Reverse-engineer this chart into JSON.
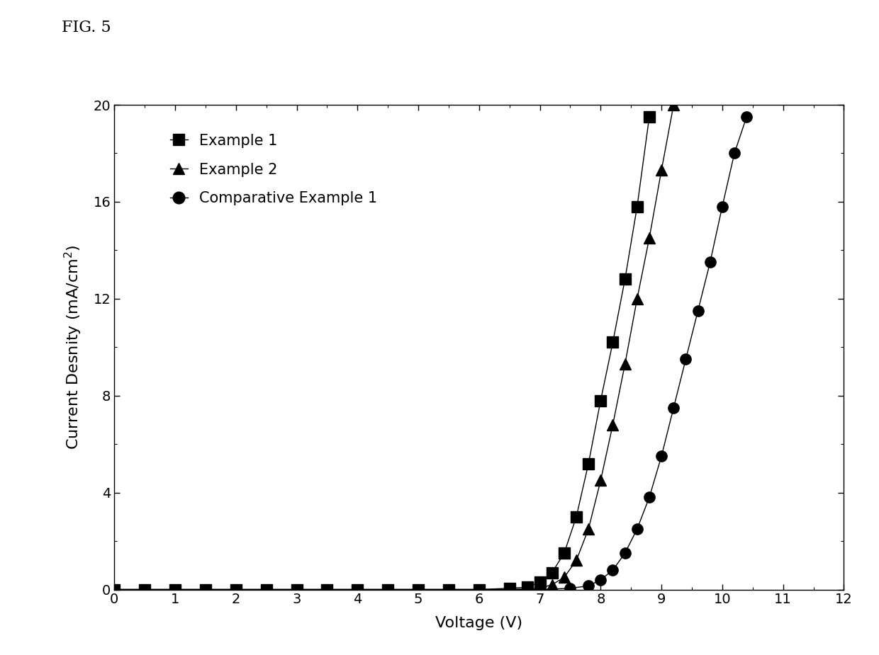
{
  "xlabel": "Voltage (V)",
  "ylabel": "Current Desnity (mA/cm²)",
  "xlim": [
    0,
    12
  ],
  "ylim": [
    0,
    20
  ],
  "xticks": [
    0,
    1,
    2,
    3,
    4,
    5,
    6,
    7,
    8,
    9,
    10,
    11,
    12
  ],
  "yticks": [
    0,
    4,
    8,
    12,
    16,
    20
  ],
  "series": [
    {
      "label": "Example 1",
      "marker": "s",
      "color": "#000000",
      "x": [
        0,
        0.5,
        1.0,
        1.5,
        2.0,
        2.5,
        3.0,
        3.5,
        4.0,
        4.5,
        5.0,
        5.5,
        6.0,
        6.5,
        6.8,
        7.0,
        7.2,
        7.4,
        7.6,
        7.8,
        8.0,
        8.2,
        8.4,
        8.6,
        8.8
      ],
      "y": [
        0.0,
        0.0,
        0.0,
        0.0,
        0.0,
        0.0,
        0.0,
        0.0,
        0.0,
        0.0,
        0.0,
        0.0,
        0.0,
        0.05,
        0.1,
        0.3,
        0.7,
        1.5,
        3.0,
        5.2,
        7.8,
        10.2,
        12.8,
        15.8,
        19.5
      ]
    },
    {
      "label": "Example 2",
      "marker": "^",
      "color": "#000000",
      "x": [
        0,
        0.5,
        1.0,
        1.5,
        2.0,
        2.5,
        3.0,
        3.5,
        4.0,
        4.5,
        5.0,
        5.5,
        6.0,
        6.5,
        7.0,
        7.2,
        7.4,
        7.6,
        7.8,
        8.0,
        8.2,
        8.4,
        8.6,
        8.8,
        9.0,
        9.2
      ],
      "y": [
        0.0,
        0.0,
        0.0,
        0.0,
        0.0,
        0.0,
        0.0,
        0.0,
        0.0,
        0.0,
        0.0,
        0.0,
        0.0,
        0.0,
        0.05,
        0.2,
        0.5,
        1.2,
        2.5,
        4.5,
        6.8,
        9.3,
        12.0,
        14.5,
        17.3,
        20.0
      ]
    },
    {
      "label": "Comparative Example 1",
      "marker": "o",
      "color": "#000000",
      "x": [
        0,
        0.5,
        1.0,
        1.5,
        2.0,
        2.5,
        3.0,
        3.5,
        4.0,
        4.5,
        5.0,
        5.5,
        6.0,
        6.5,
        7.0,
        7.5,
        7.8,
        8.0,
        8.2,
        8.4,
        8.6,
        8.8,
        9.0,
        9.2,
        9.4,
        9.6,
        9.8,
        10.0,
        10.2,
        10.4
      ],
      "y": [
        0.0,
        0.0,
        0.0,
        0.0,
        0.0,
        0.0,
        0.0,
        0.0,
        0.0,
        0.0,
        0.0,
        0.0,
        0.0,
        0.0,
        0.0,
        0.05,
        0.15,
        0.4,
        0.8,
        1.5,
        2.5,
        3.8,
        5.5,
        7.5,
        9.5,
        11.5,
        13.5,
        15.8,
        18.0,
        19.5
      ]
    }
  ],
  "figure_label": "FIG. 5",
  "background_color": "#ffffff",
  "marker_size": 11,
  "line_width": 1.0,
  "legend_loc": "upper left",
  "legend_fontsize": 15
}
